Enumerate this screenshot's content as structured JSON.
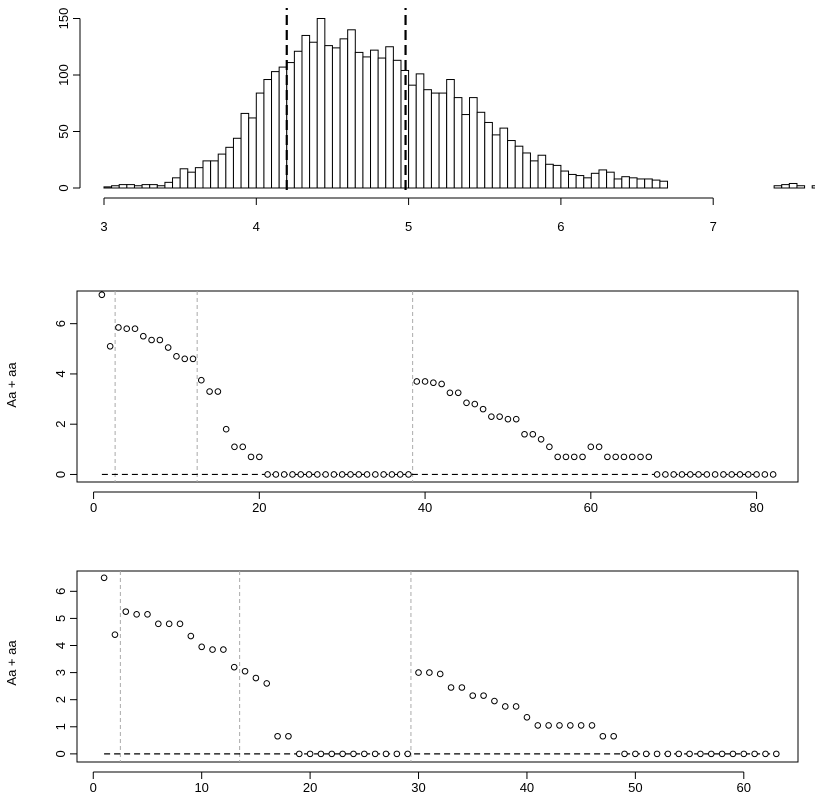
{
  "chart_data": [
    {
      "type": "bar",
      "title": "",
      "xlabel": "",
      "ylabel": "",
      "x_ticks": [
        "3",
        "4",
        "5",
        "6",
        "7"
      ],
      "y_ticks": [
        "0",
        "50",
        "100",
        "150"
      ],
      "xlim": [
        3,
        7.45
      ],
      "ylim": [
        0,
        150
      ],
      "bin_start": 3,
      "bin_width": 0.05,
      "values": [
        1,
        2,
        3,
        3,
        2,
        3,
        3,
        2,
        5,
        9,
        17,
        14,
        18,
        24,
        24,
        30,
        36,
        44,
        66,
        62,
        84,
        96,
        103,
        107,
        111,
        121,
        135,
        129,
        150,
        126,
        124,
        132,
        140,
        120,
        116,
        122,
        115,
        125,
        113,
        104,
        91,
        101,
        87,
        84,
        84,
        96,
        80,
        65,
        80,
        67,
        58,
        47,
        53,
        42,
        37,
        31,
        24,
        29,
        21,
        20,
        15,
        12,
        11,
        9,
        13,
        16,
        14,
        8,
        10,
        9,
        8,
        8,
        7,
        6,
        0,
        0,
        0,
        0,
        0,
        0,
        0,
        0,
        0,
        0,
        0,
        0,
        0,
        0,
        2,
        3,
        4,
        2,
        0,
        2,
        0,
        1,
        2,
        0,
        1,
        2,
        0,
        3,
        0,
        1,
        2,
        0,
        0,
        0,
        0,
        0,
        0,
        1,
        1
      ],
      "vlines": [
        4.2,
        4.98
      ],
      "vline_style": "dashed"
    },
    {
      "type": "scatter",
      "title": "",
      "xlabel": "",
      "ylabel": "Aa + aa",
      "x_ticks": [
        "0",
        "20",
        "40",
        "60",
        "80"
      ],
      "y_ticks": [
        "0",
        "2",
        "4",
        "6"
      ],
      "xlim": [
        -2,
        85
      ],
      "ylim": [
        -0.3,
        7.3
      ],
      "x": [
        1,
        2,
        3,
        4,
        5,
        6,
        7,
        8,
        9,
        10,
        11,
        12,
        13,
        14,
        15,
        16,
        17,
        18,
        19,
        20,
        21,
        22,
        23,
        24,
        25,
        26,
        27,
        28,
        29,
        30,
        31,
        32,
        33,
        34,
        35,
        36,
        37,
        38,
        39,
        40,
        41,
        42,
        43,
        44,
        45,
        46,
        47,
        48,
        49,
        50,
        51,
        52,
        53,
        54,
        55,
        56,
        57,
        58,
        59,
        60,
        61,
        62,
        63,
        64,
        65,
        66,
        67,
        68,
        69,
        70,
        71,
        72,
        73,
        74,
        75,
        76,
        77,
        78,
        79,
        80,
        81,
        82
      ],
      "y": [
        7.15,
        5.1,
        5.85,
        5.8,
        5.8,
        5.5,
        5.35,
        5.35,
        5.05,
        4.7,
        4.6,
        4.6,
        3.75,
        3.3,
        3.3,
        1.8,
        1.1,
        1.1,
        0.7,
        0.7,
        0,
        0,
        0,
        0,
        0,
        0,
        0,
        0,
        0,
        0,
        0,
        0,
        0,
        0,
        0,
        0,
        0,
        0,
        3.7,
        3.7,
        3.65,
        3.6,
        3.25,
        3.25,
        2.85,
        2.8,
        2.6,
        2.3,
        2.3,
        2.2,
        2.2,
        1.6,
        1.6,
        1.4,
        1.1,
        0.7,
        0.7,
        0.7,
        0.7,
        1.1,
        1.1,
        0.7,
        0.7,
        0.7,
        0.7,
        0.7,
        0.7,
        0,
        0,
        0,
        0,
        0,
        0,
        0,
        0,
        0,
        0,
        0,
        0,
        0,
        0,
        0
      ],
      "hline": 0,
      "vlines": [
        2.6,
        12.5,
        38.5
      ]
    },
    {
      "type": "scatter",
      "title": "",
      "xlabel": "",
      "ylabel": "Aa + aa",
      "x_ticks": [
        "0",
        "10",
        "20",
        "30",
        "40",
        "50",
        "60"
      ],
      "y_ticks": [
        "0",
        "1",
        "2",
        "3",
        "4",
        "5",
        "6"
      ],
      "xlim": [
        -1.5,
        65
      ],
      "ylim": [
        -0.3,
        6.75
      ],
      "x": [
        1,
        2,
        3,
        4,
        5,
        6,
        7,
        8,
        9,
        10,
        11,
        12,
        13,
        14,
        15,
        16,
        17,
        18,
        19,
        20,
        21,
        22,
        23,
        24,
        25,
        26,
        27,
        28,
        29,
        30,
        31,
        32,
        33,
        34,
        35,
        36,
        37,
        38,
        39,
        40,
        41,
        42,
        43,
        44,
        45,
        46,
        47,
        48,
        49,
        50,
        51,
        52,
        53,
        54,
        55,
        56,
        57,
        58,
        59,
        60,
        61,
        62,
        63
      ],
      "y": [
        6.5,
        4.4,
        5.25,
        5.15,
        5.15,
        4.8,
        4.8,
        4.8,
        4.35,
        3.95,
        3.85,
        3.85,
        3.2,
        3.05,
        2.8,
        2.6,
        0.65,
        0.65,
        0,
        0,
        0,
        0,
        0,
        0,
        0,
        0,
        0,
        0,
        0,
        3,
        3,
        2.95,
        2.45,
        2.45,
        2.15,
        2.15,
        1.95,
        1.75,
        1.75,
        1.35,
        1.05,
        1.05,
        1.05,
        1.05,
        1.05,
        1.05,
        0.65,
        0.65,
        0,
        0,
        0,
        0,
        0,
        0,
        0,
        0,
        0,
        0,
        0,
        0,
        0,
        0,
        0
      ],
      "hline": 0,
      "vlines": [
        2.5,
        13.5,
        29.3
      ]
    }
  ]
}
